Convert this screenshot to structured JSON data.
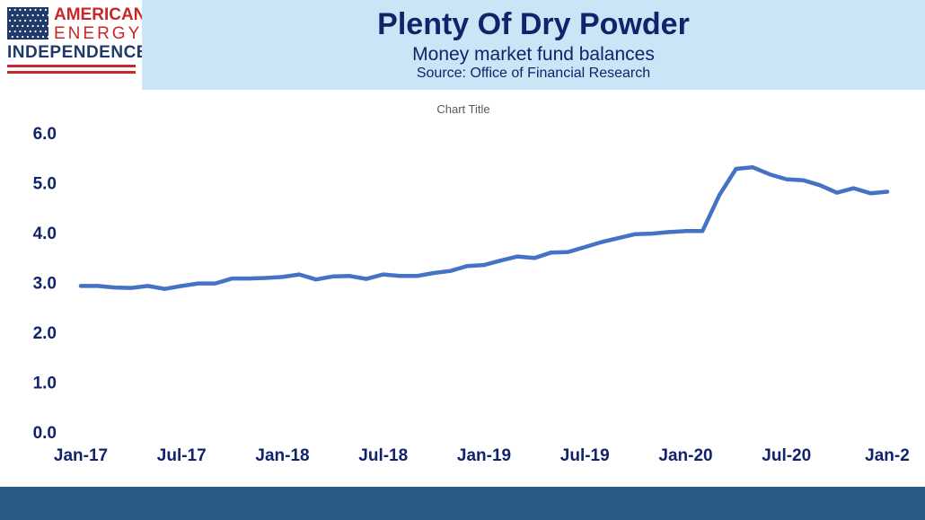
{
  "logo": {
    "line1": "AMERICAN",
    "line2": "ENERGY",
    "line3": "INDEPENDENCE",
    "flag_color": "#1f3a68",
    "red": "#c8262b"
  },
  "header": {
    "title": "Plenty Of Dry Powder",
    "subtitle": "Money market fund balances",
    "source": "Source: Office of Financial Research",
    "background": "#cce5f6",
    "text_color": "#10236b"
  },
  "footer": {
    "color": "#2a5a86"
  },
  "chart_data": {
    "type": "line",
    "title": "Chart Title",
    "xlabel": "",
    "ylabel": "",
    "ylim": [
      0,
      6
    ],
    "yticks": [
      "0.0",
      "1.0",
      "2.0",
      "3.0",
      "4.0",
      "5.0",
      "6.0"
    ],
    "xticks": [
      "Jan-17",
      "Jul-17",
      "Jan-18",
      "Jul-18",
      "Jan-19",
      "Jul-19",
      "Jan-20",
      "Jul-20",
      "Jan-2"
    ],
    "grid": false,
    "series": [
      {
        "color": "#4472c4",
        "x": [
          "2017-01",
          "2017-02",
          "2017-03",
          "2017-04",
          "2017-05",
          "2017-06",
          "2017-07",
          "2017-08",
          "2017-09",
          "2017-10",
          "2017-11",
          "2017-12",
          "2018-01",
          "2018-02",
          "2018-03",
          "2018-04",
          "2018-05",
          "2018-06",
          "2018-07",
          "2018-08",
          "2018-09",
          "2018-10",
          "2018-11",
          "2018-12",
          "2019-01",
          "2019-02",
          "2019-03",
          "2019-04",
          "2019-05",
          "2019-06",
          "2019-07",
          "2019-08",
          "2019-09",
          "2019-10",
          "2019-11",
          "2019-12",
          "2020-01",
          "2020-02",
          "2020-03",
          "2020-04",
          "2020-05",
          "2020-06",
          "2020-07",
          "2020-08",
          "2020-09",
          "2020-10",
          "2020-11",
          "2020-12",
          "2021-01"
        ],
        "values": [
          2.93,
          2.93,
          2.9,
          2.89,
          2.93,
          2.87,
          2.93,
          2.98,
          2.98,
          3.08,
          3.08,
          3.09,
          3.11,
          3.16,
          3.06,
          3.12,
          3.13,
          3.07,
          3.16,
          3.13,
          3.13,
          3.19,
          3.23,
          3.33,
          3.35,
          3.44,
          3.52,
          3.49,
          3.6,
          3.61,
          3.71,
          3.81,
          3.89,
          3.97,
          3.98,
          4.01,
          4.03,
          4.03,
          4.75,
          5.28,
          5.31,
          5.17,
          5.07,
          5.05,
          4.95,
          4.8,
          4.89,
          4.79,
          4.82
        ]
      }
    ]
  }
}
